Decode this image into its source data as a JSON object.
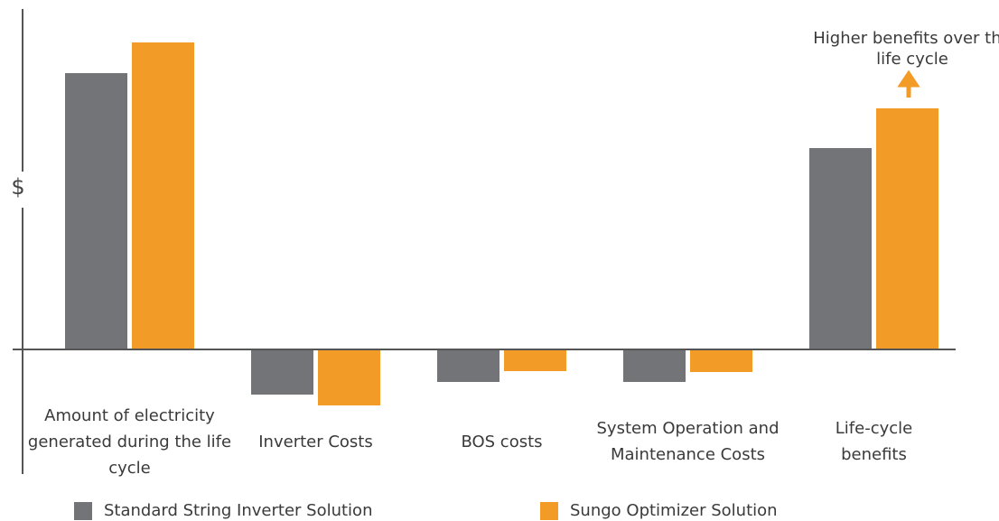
{
  "chart_data": {
    "type": "bar",
    "ylabel": "$",
    "annotation": "Higher benefits over the life cycle",
    "categories": [
      "Amount of electricity generated during the life cycle",
      "Inverter Costs",
      "BOS costs",
      "System Operation and Maintenance Costs",
      "Life-cycle benefits"
    ],
    "series": [
      {
        "name": "Standard String Inverter Solution",
        "color": "#737478",
        "values": [
          306,
          -50,
          -36,
          -36,
          223
        ]
      },
      {
        "name": "Sungo Optimizer Solution",
        "color": "#f29b27",
        "values": [
          340,
          -62,
          -24,
          -25,
          267
        ]
      }
    ],
    "ylim": [
      -138,
      377
    ]
  }
}
